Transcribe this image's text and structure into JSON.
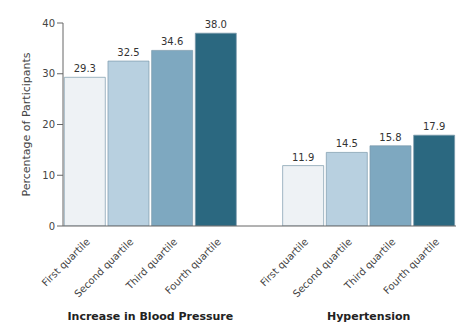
{
  "chart_data": {
    "type": "bar",
    "categories": [
      "First quartile",
      "Second quartile",
      "Third quartile",
      "Fourth quartile"
    ],
    "series": [
      {
        "name": "Increase in Blood Pressure",
        "values": [
          29.3,
          32.5,
          34.6,
          38.0
        ],
        "value_labels": [
          "29.3",
          "32.5",
          "34.6",
          "38.0"
        ]
      },
      {
        "name": "Hypertension",
        "values": [
          11.9,
          14.5,
          15.8,
          17.9
        ]
      }
    ],
    "colors": [
      "#eef2f5",
      "#b8d0e0",
      "#7ea8c0",
      "#2b6880"
    ],
    "ylabel": "Percentage of Participants",
    "ylim": [
      0,
      40
    ],
    "yticks": [
      0,
      10,
      20,
      30,
      40
    ],
    "data_labels": true,
    "grid": false
  }
}
